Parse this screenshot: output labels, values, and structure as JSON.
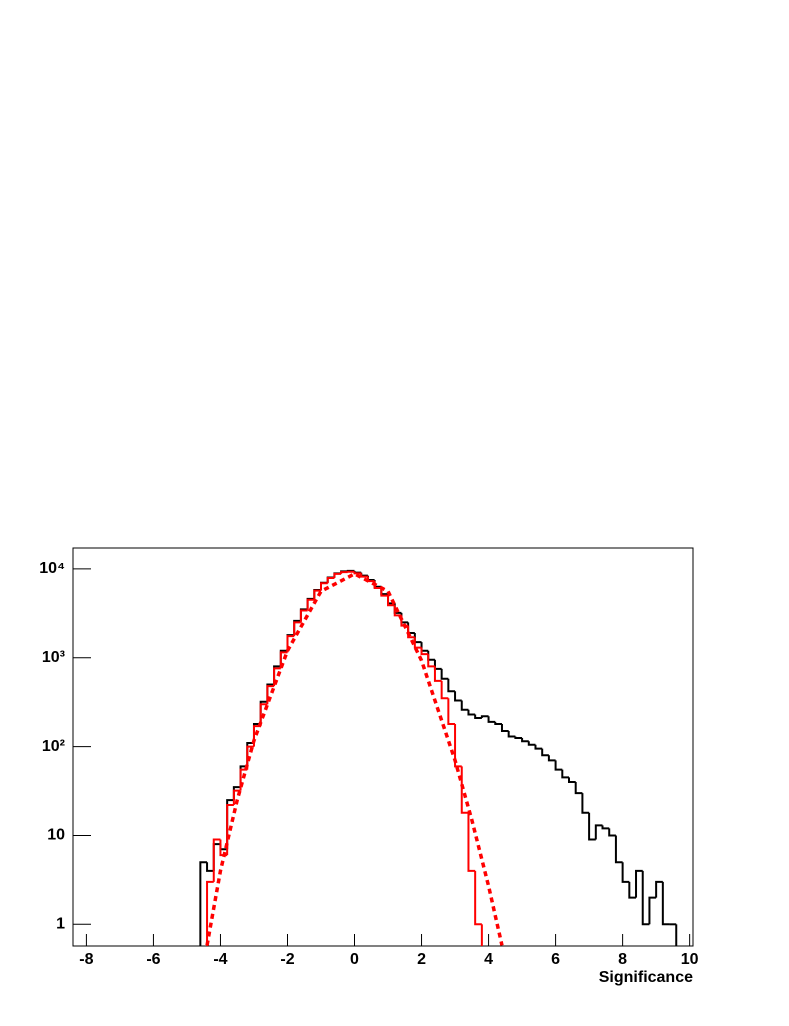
{
  "chart_data": {
    "type": "histogram",
    "xlabel": "Significance",
    "xlim": [
      -8.4,
      10.1
    ],
    "xticks": [
      -8,
      -6,
      -4,
      -2,
      0,
      2,
      4,
      6,
      8,
      10
    ],
    "ylim": [
      0.57,
      17200
    ],
    "log_y": true,
    "yticks": [
      1,
      10,
      {
        "value": 100,
        "label": "10²"
      },
      {
        "value": 1000,
        "label": "10³"
      },
      {
        "value": 10000,
        "label": "10⁴"
      }
    ],
    "bins": [
      -4.6,
      -4.4,
      -4.2,
      -4.0,
      -3.8,
      -3.6,
      -3.4,
      -3.2,
      -3.0,
      -2.8,
      -2.6,
      -2.4,
      -2.2,
      -2.0,
      -1.8,
      -1.6,
      -1.4,
      -1.2,
      -1.0,
      -0.8,
      -0.6,
      -0.4,
      -0.2,
      0,
      0.2,
      0.4,
      0.6,
      0.8,
      1.0,
      1.2,
      1.4,
      1.6,
      1.8,
      2.0,
      2.2,
      2.4,
      2.6,
      2.8,
      3.0,
      3.2,
      3.4,
      3.6,
      3.8,
      4.0,
      4.2,
      4.4,
      4.6,
      4.8,
      5.0,
      5.2,
      5.4,
      5.6,
      5.8,
      6.0,
      6.2,
      6.4,
      6.6,
      6.8,
      7.0,
      7.2,
      7.4,
      7.6,
      7.8,
      8.0,
      8.2,
      8.4,
      8.6,
      8.8,
      9.0,
      9.2,
      9.4,
      9.6
    ],
    "series": [
      {
        "color": "#000000",
        "values": [
          5,
          4,
          8,
          7,
          25,
          35,
          60,
          110,
          180,
          320,
          500,
          800,
          1200,
          1800,
          2600,
          3500,
          4600,
          5800,
          7000,
          8000,
          8900,
          9400,
          9500,
          9100,
          8400,
          7500,
          6300,
          5200,
          4100,
          3200,
          2500,
          1900,
          1500,
          1200,
          950,
          750,
          580,
          420,
          330,
          260,
          230,
          210,
          220,
          190,
          180,
          150,
          130,
          125,
          115,
          105,
          95,
          80,
          70,
          55,
          45,
          40,
          30,
          18,
          9,
          13,
          12,
          10,
          5,
          3,
          2,
          4,
          1,
          2,
          3,
          1,
          1
        ]
      },
      {
        "color": "#ff0000",
        "values": [
          null,
          3,
          9,
          6,
          22,
          32,
          55,
          100,
          170,
          300,
          480,
          760,
          1150,
          1750,
          2500,
          3400,
          4500,
          5700,
          6900,
          7900,
          8800,
          9200,
          9300,
          8900,
          8200,
          7300,
          6100,
          5000,
          3900,
          3000,
          2300,
          1700,
          1300,
          1100,
          800,
          550,
          350,
          180,
          60,
          18,
          4,
          1,
          null,
          null,
          null,
          null,
          null,
          null,
          null,
          null,
          null,
          null,
          null,
          null,
          null,
          null,
          null,
          null,
          null,
          null,
          null,
          null,
          null,
          null,
          null,
          null,
          null,
          null,
          null,
          null,
          null
        ]
      }
    ],
    "curve": {
      "color": "#ff0000",
      "style": "dashed",
      "x": [
        -4.4,
        -4.0,
        -3.5,
        -3.0,
        -2.0,
        -1.0,
        0,
        1.0,
        2.0,
        3.0,
        3.5,
        4.0,
        4.4
      ],
      "values": [
        0.58,
        4,
        25,
        117,
        1200,
        5600,
        8800,
        5600,
        930,
        70,
        15,
        2.7,
        0.58
      ]
    }
  }
}
